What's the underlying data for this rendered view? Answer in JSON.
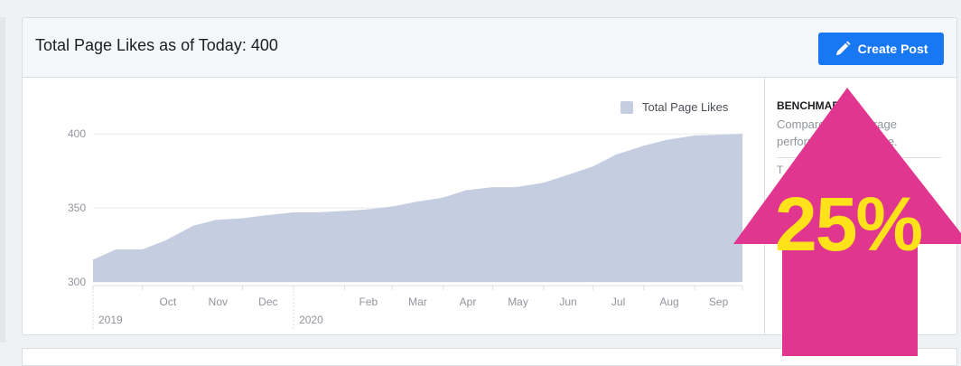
{
  "header": {
    "title": "Total Page Likes as of Today: 400",
    "create_post_label": "Create Post"
  },
  "sidebar": {
    "title": "BENCHMARK",
    "description": "Compare your average performance over time.",
    "sub": "T"
  },
  "overlay": {
    "percent_label": "25%",
    "arrow_color": "#e0368f",
    "text_color": "#ffe21a"
  },
  "colors": {
    "area_fill": "#c5cde0",
    "accent": "#1877f2"
  },
  "chart_data": {
    "type": "area",
    "legend": [
      "Total Page Likes"
    ],
    "legend_position": "top-right",
    "y_ticks": [
      300,
      350,
      400
    ],
    "ylim": [
      300,
      405
    ],
    "x_tick_labels": [
      "Oct",
      "Nov",
      "Dec",
      "Feb",
      "Mar",
      "Apr",
      "May",
      "Jun",
      "Jul",
      "Aug",
      "Sep"
    ],
    "year_labels": [
      "2019",
      "2020"
    ],
    "grid": true,
    "series": [
      {
        "name": "Total Page Likes",
        "x": [
          "2019-09-01",
          "2019-09-15",
          "2019-10-01",
          "2019-10-15",
          "2019-11-01",
          "2019-11-15",
          "2019-12-01",
          "2019-12-15",
          "2020-01-01",
          "2020-01-15",
          "2020-02-01",
          "2020-02-15",
          "2020-03-01",
          "2020-03-15",
          "2020-04-01",
          "2020-04-15",
          "2020-05-01",
          "2020-05-15",
          "2020-06-01",
          "2020-06-15",
          "2020-07-01",
          "2020-07-15",
          "2020-08-01",
          "2020-08-15",
          "2020-09-01",
          "2020-09-30"
        ],
        "values": [
          315,
          322,
          322,
          328,
          338,
          342,
          343,
          345,
          347,
          347,
          348,
          349,
          351,
          354,
          357,
          362,
          364,
          364,
          367,
          372,
          378,
          386,
          392,
          396,
          399,
          400
        ]
      }
    ]
  }
}
